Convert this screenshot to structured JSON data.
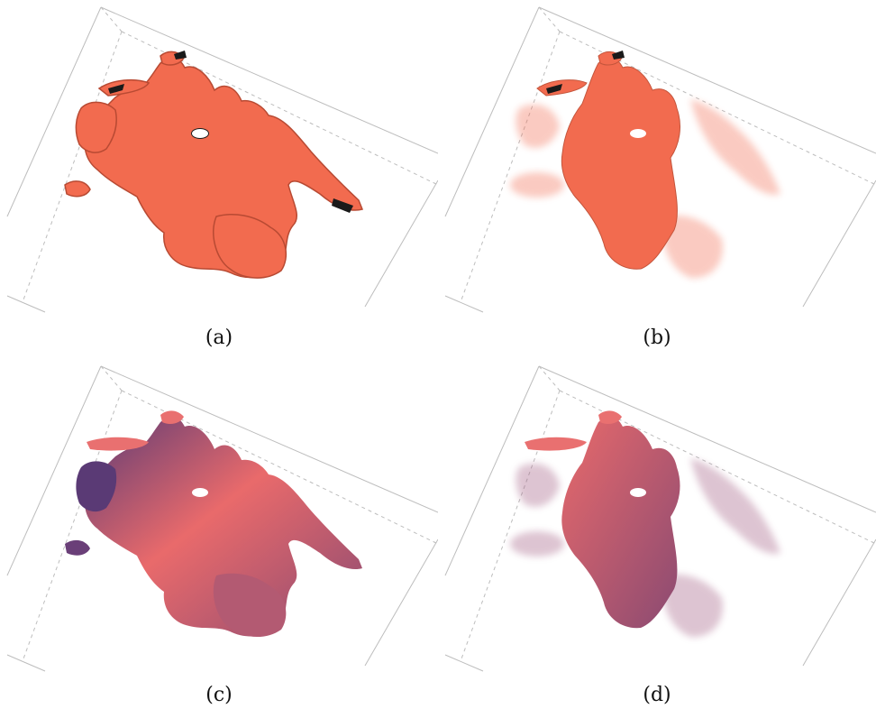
{
  "panels": [
    {
      "id": "a",
      "caption": "(a)",
      "style": "opaque-flat",
      "color": "#f26b4f",
      "dark": "#1a1a1a"
    },
    {
      "id": "b",
      "caption": "(b)",
      "style": "translucent-flat",
      "color": "#f26b4f",
      "dark": "#1a1a1a"
    },
    {
      "id": "c",
      "caption": "(c)",
      "style": "opaque-depth",
      "color": "#e96a6b",
      "far": "#5a3a75"
    },
    {
      "id": "d",
      "caption": "(d)",
      "style": "translucent-depth",
      "color": "#e96a6b",
      "far": "#6a4a7a"
    }
  ]
}
